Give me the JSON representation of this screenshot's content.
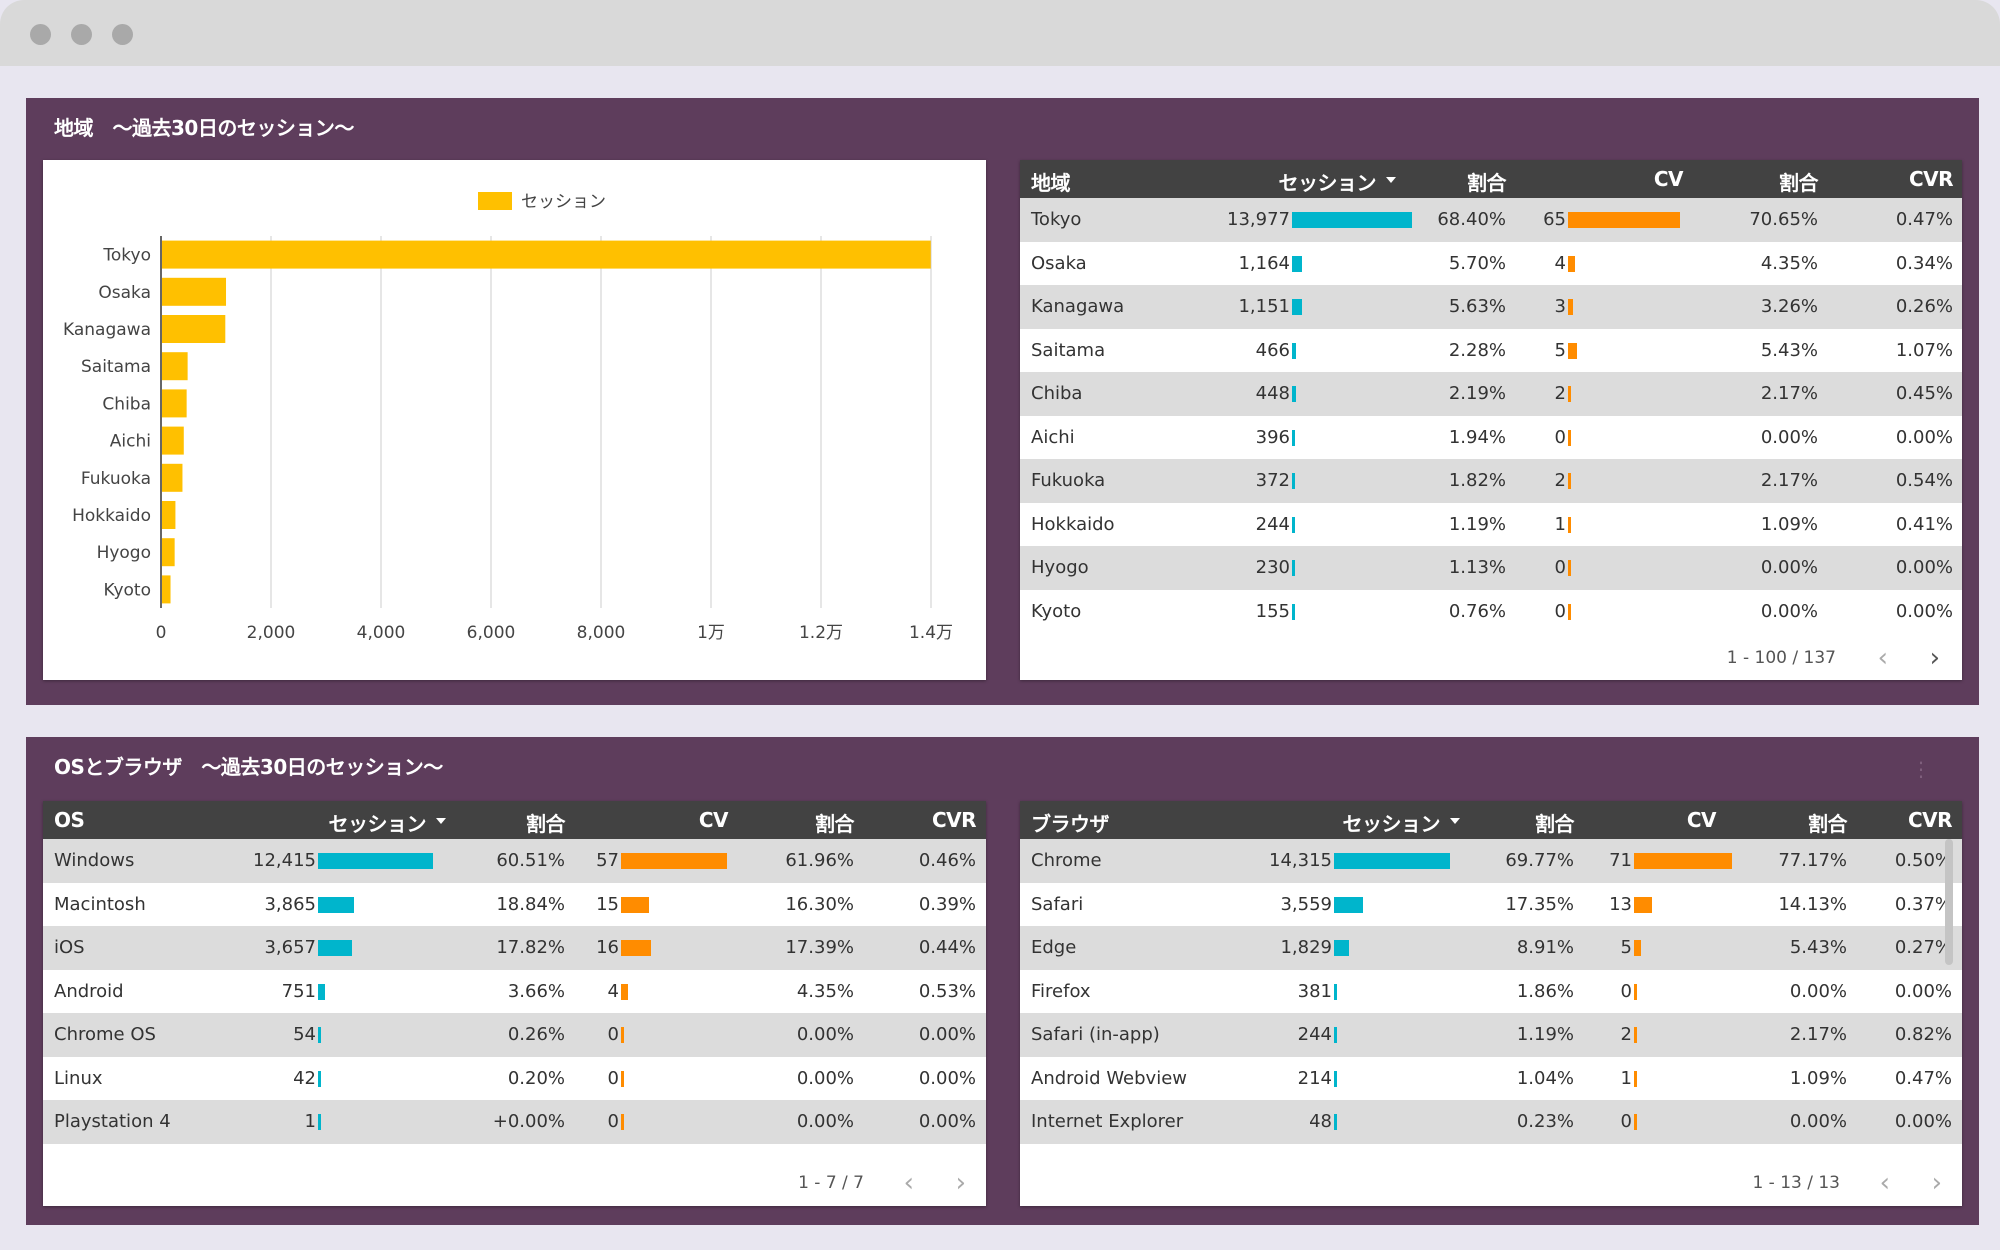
{
  "region_panel": {
    "title": "地域　～過去30日のセッション～",
    "chart_data": {
      "type": "bar",
      "orientation": "horizontal",
      "categories": [
        "Tokyo",
        "Osaka",
        "Kanagawa",
        "Saitama",
        "Chiba",
        "Aichi",
        "Fukuoka",
        "Hokkaido",
        "Hyogo",
        "Kyoto"
      ],
      "series": [
        {
          "name": "セッション",
          "values": [
            13977,
            1164,
            1151,
            466,
            448,
            396,
            372,
            244,
            230,
            155
          ]
        }
      ],
      "xlim": [
        0,
        14000
      ],
      "x_ticks": [
        "0",
        "2,000",
        "4,000",
        "6,000",
        "8,000",
        "1万",
        "1.2万",
        "1.4万"
      ],
      "legend_position": "top-center",
      "grid": true,
      "color": "#ffc000"
    },
    "table": {
      "headers": {
        "dim": "地域",
        "sessions": "セッション",
        "share1": "割合",
        "cv": "CV",
        "share2": "割合",
        "cvr": "CVR"
      },
      "rows": [
        {
          "name": "Tokyo",
          "sessions": "13,977",
          "sv": 13977,
          "share1": "68.40%",
          "cv": "65",
          "cvv": 65,
          "share2": "70.65%",
          "cvr": "0.47%"
        },
        {
          "name": "Osaka",
          "sessions": "1,164",
          "sv": 1164,
          "share1": "5.70%",
          "cv": "4",
          "cvv": 4,
          "share2": "4.35%",
          "cvr": "0.34%"
        },
        {
          "name": "Kanagawa",
          "sessions": "1,151",
          "sv": 1151,
          "share1": "5.63%",
          "cv": "3",
          "cvv": 3,
          "share2": "3.26%",
          "cvr": "0.26%"
        },
        {
          "name": "Saitama",
          "sessions": "466",
          "sv": 466,
          "share1": "2.28%",
          "cv": "5",
          "cvv": 5,
          "share2": "5.43%",
          "cvr": "1.07%"
        },
        {
          "name": "Chiba",
          "sessions": "448",
          "sv": 448,
          "share1": "2.19%",
          "cv": "2",
          "cvv": 2,
          "share2": "2.17%",
          "cvr": "0.45%"
        },
        {
          "name": "Aichi",
          "sessions": "396",
          "sv": 396,
          "share1": "1.94%",
          "cv": "0",
          "cvv": 0,
          "share2": "0.00%",
          "cvr": "0.00%"
        },
        {
          "name": "Fukuoka",
          "sessions": "372",
          "sv": 372,
          "share1": "1.82%",
          "cv": "2",
          "cvv": 2,
          "share2": "2.17%",
          "cvr": "0.54%"
        },
        {
          "name": "Hokkaido",
          "sessions": "244",
          "sv": 244,
          "share1": "1.19%",
          "cv": "1",
          "cvv": 1,
          "share2": "1.09%",
          "cvr": "0.41%"
        },
        {
          "name": "Hyogo",
          "sessions": "230",
          "sv": 230,
          "share1": "1.13%",
          "cv": "0",
          "cvv": 0,
          "share2": "0.00%",
          "cvr": "0.00%"
        },
        {
          "name": "Kyoto",
          "sessions": "155",
          "sv": 155,
          "share1": "0.76%",
          "cv": "0",
          "cvv": 0,
          "share2": "0.00%",
          "cvr": "0.00%"
        }
      ],
      "pager": "1 - 100 / 137"
    }
  },
  "os_panel": {
    "title": "OSとブラウザ　～過去30日のセッション～",
    "more_icon": "⋮",
    "os_table": {
      "headers": {
        "dim": "OS",
        "sessions": "セッション",
        "share1": "割合",
        "cv": "CV",
        "share2": "割合",
        "cvr": "CVR"
      },
      "rows": [
        {
          "name": "Windows",
          "sessions": "12,415",
          "sv": 12415,
          "share1": "60.51%",
          "cv": "57",
          "cvv": 57,
          "share2": "61.96%",
          "cvr": "0.46%"
        },
        {
          "name": "Macintosh",
          "sessions": "3,865",
          "sv": 3865,
          "share1": "18.84%",
          "cv": "15",
          "cvv": 15,
          "share2": "16.30%",
          "cvr": "0.39%"
        },
        {
          "name": "iOS",
          "sessions": "3,657",
          "sv": 3657,
          "share1": "17.82%",
          "cv": "16",
          "cvv": 16,
          "share2": "17.39%",
          "cvr": "0.44%"
        },
        {
          "name": "Android",
          "sessions": "751",
          "sv": 751,
          "share1": "3.66%",
          "cv": "4",
          "cvv": 4,
          "share2": "4.35%",
          "cvr": "0.53%"
        },
        {
          "name": "Chrome OS",
          "sessions": "54",
          "sv": 54,
          "share1": "0.26%",
          "cv": "0",
          "cvv": 0,
          "share2": "0.00%",
          "cvr": "0.00%"
        },
        {
          "name": "Linux",
          "sessions": "42",
          "sv": 42,
          "share1": "0.20%",
          "cv": "0",
          "cvv": 0,
          "share2": "0.00%",
          "cvr": "0.00%"
        },
        {
          "name": "Playstation 4",
          "sessions": "1",
          "sv": 1,
          "share1": "+0.00%",
          "cv": "0",
          "cvv": 0,
          "share2": "0.00%",
          "cvr": "0.00%"
        }
      ],
      "pager": "1 - 7 / 7"
    },
    "browser_table": {
      "headers": {
        "dim": "ブラウザ",
        "sessions": "セッション",
        "share1": "割合",
        "cv": "CV",
        "share2": "割合",
        "cvr": "CVR"
      },
      "rows": [
        {
          "name": "Chrome",
          "sessions": "14,315",
          "sv": 14315,
          "share1": "69.77%",
          "cv": "71",
          "cvv": 71,
          "share2": "77.17%",
          "cvr": "0.50%"
        },
        {
          "name": "Safari",
          "sessions": "3,559",
          "sv": 3559,
          "share1": "17.35%",
          "cv": "13",
          "cvv": 13,
          "share2": "14.13%",
          "cvr": "0.37%"
        },
        {
          "name": "Edge",
          "sessions": "1,829",
          "sv": 1829,
          "share1": "8.91%",
          "cv": "5",
          "cvv": 5,
          "share2": "5.43%",
          "cvr": "0.27%"
        },
        {
          "name": "Firefox",
          "sessions": "381",
          "sv": 381,
          "share1": "1.86%",
          "cv": "0",
          "cvv": 0,
          "share2": "0.00%",
          "cvr": "0.00%"
        },
        {
          "name": "Safari (in-app)",
          "sessions": "244",
          "sv": 244,
          "share1": "1.19%",
          "cv": "2",
          "cvv": 2,
          "share2": "2.17%",
          "cvr": "0.82%"
        },
        {
          "name": "Android Webview",
          "sessions": "214",
          "sv": 214,
          "share1": "1.04%",
          "cv": "1",
          "cvv": 1,
          "share2": "1.09%",
          "cvr": "0.47%"
        },
        {
          "name": "Internet Explorer",
          "sessions": "48",
          "sv": 48,
          "share1": "0.23%",
          "cv": "0",
          "cvv": 0,
          "share2": "0.00%",
          "cvr": "0.00%"
        }
      ],
      "pager": "1 - 13 / 13"
    }
  },
  "pager_icons": {
    "prev": "‹",
    "next": "›"
  },
  "colors": {
    "panel": "#5e3d5c",
    "bar_sessions": "#00b5cc",
    "bar_cv": "#ff8c00",
    "chart_bar": "#ffc000"
  }
}
